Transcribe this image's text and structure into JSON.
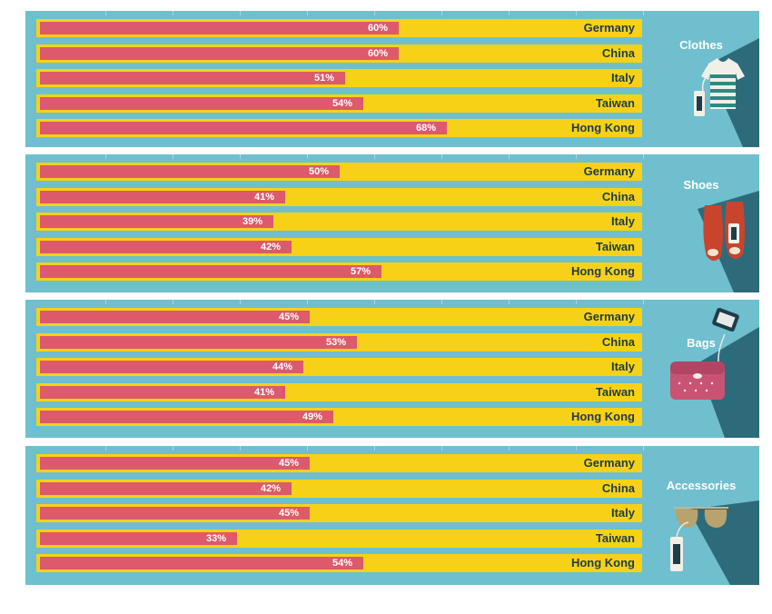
{
  "chart_data": [
    {
      "type": "bar",
      "category": "Clothes",
      "categories": [
        "Germany",
        "China",
        "Italy",
        "Taiwan",
        "Hong Kong"
      ],
      "values": [
        60,
        60,
        51,
        54,
        68
      ],
      "labels": [
        "60%",
        "60%",
        "51%",
        "54%",
        "68%"
      ],
      "xlim": [
        0,
        100
      ],
      "icon": "t-shirt-icon"
    },
    {
      "type": "bar",
      "category": "Shoes",
      "categories": [
        "Germany",
        "China",
        "Italy",
        "Taiwan",
        "Hong Kong"
      ],
      "values": [
        50,
        41,
        39,
        42,
        57
      ],
      "labels": [
        "50%",
        "41%",
        "39%",
        "42%",
        "57%"
      ],
      "xlim": [
        0,
        100
      ],
      "icon": "high-heels-icon"
    },
    {
      "type": "bar",
      "category": "Bags",
      "categories": [
        "Germany",
        "China",
        "Italy",
        "Taiwan",
        "Hong Kong"
      ],
      "values": [
        45,
        53,
        44,
        41,
        49
      ],
      "labels": [
        "45%",
        "53%",
        "44%",
        "41%",
        "49%"
      ],
      "xlim": [
        0,
        100
      ],
      "icon": "handbag-icon"
    },
    {
      "type": "bar",
      "category": "Accessories",
      "categories": [
        "Germany",
        "China",
        "Italy",
        "Taiwan",
        "Hong Kong"
      ],
      "values": [
        45,
        42,
        45,
        33,
        54
      ],
      "labels": [
        "45%",
        "42%",
        "45%",
        "33%",
        "54%"
      ],
      "xlim": [
        0,
        100
      ],
      "icon": "sunglasses-icon"
    }
  ],
  "colors": {
    "panel": "#6fbfce",
    "track": "#f7d117",
    "bar": "#dc5a6b",
    "label": "#1f3c48",
    "value_text": "#ffffff",
    "shadow": "#2d6b7a"
  }
}
